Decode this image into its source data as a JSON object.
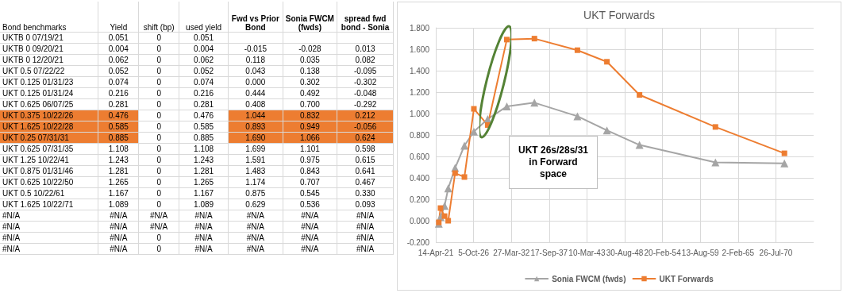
{
  "chart_data": [
    {
      "type": "other",
      "categories": [
        "Bond benchmarks",
        "Yield",
        "shift (bp)",
        "used yield",
        "Fwd vs Prior Bond",
        "Sonia FWCM (fwds)",
        "spread fwd bond - Sonia"
      ],
      "y_categories": [
        "UKTB 0 07/19/21",
        "UKTB 0 09/20/21",
        "UKTB 0 12/20/21",
        "UKT 0.5 07/22/22",
        "UKT 0.125 01/31/23",
        "UKT 0.125 01/31/24",
        "UKT 0.625 06/07/25",
        "UKT 0.375 10/22/26",
        "UKT 1.625 10/22/28",
        "UKT 0.25 07/31/31",
        "UKT 0.625 07/31/35",
        "UKT 1.25 10/22/41",
        "UKT 0.875 01/31/46",
        "UKT 0.625 10/22/50",
        "UKT 0.5 10/22/61",
        "UKT 1.625 10/22/71",
        "#N/A",
        "#N/A",
        "#N/A",
        "#N/A"
      ],
      "cell_labels": [
        [
          "0.051",
          "0",
          "0.051",
          null,
          null,
          null
        ],
        [
          "0.004",
          "0",
          "0.004",
          "-0.015",
          "-0.028",
          "0.013"
        ],
        [
          "0.062",
          "0",
          "0.062",
          "0.118",
          "0.035",
          "0.082"
        ],
        [
          "0.052",
          "0",
          "0.052",
          "0.043",
          "0.138",
          "-0.095"
        ],
        [
          "0.074",
          "0",
          "0.074",
          "0.000",
          "0.302",
          "-0.302"
        ],
        [
          "0.216",
          "0",
          "0.216",
          "0.444",
          "0.492",
          "-0.048"
        ],
        [
          "0.281",
          "0",
          "0.281",
          "0.408",
          "0.700",
          "-0.292"
        ],
        [
          "0.476",
          "0",
          "0.476",
          "1.044",
          "0.832",
          "0.212"
        ],
        [
          "0.585",
          "0",
          "0.585",
          "0.893",
          "0.949",
          "-0.056"
        ],
        [
          "0.885",
          "0",
          "0.885",
          "1.690",
          "1.066",
          "0.624"
        ],
        [
          "1.108",
          "0",
          "1.108",
          "1.699",
          "1.101",
          "0.598"
        ],
        [
          "1.243",
          "0",
          "1.243",
          "1.591",
          "0.975",
          "0.615"
        ],
        [
          "1.281",
          "0",
          "1.281",
          "1.483",
          "0.843",
          "0.641"
        ],
        [
          "1.265",
          "0",
          "1.265",
          "1.174",
          "0.707",
          "0.467"
        ],
        [
          "1.167",
          "0",
          "1.167",
          "0.875",
          "0.545",
          "0.330"
        ],
        [
          "1.089",
          "0",
          "1.089",
          "0.629",
          "0.536",
          "0.093"
        ],
        [
          "#N/A",
          "#N/A",
          "#N/A",
          "#N/A",
          "#N/A",
          "#N/A"
        ],
        [
          "#N/A",
          "#N/A",
          "#N/A",
          "#N/A",
          "#N/A",
          "#N/A"
        ],
        [
          "#N/A",
          "0",
          "#N/A",
          "#N/A",
          "#N/A",
          "#N/A"
        ],
        [
          "#N/A",
          "0",
          "#N/A",
          "#N/A",
          "#N/A",
          "#N/A"
        ]
      ],
      "colors": [
        null,
        null,
        null,
        null,
        null,
        null,
        null,
        "#ed7d31",
        "#ed7d31",
        "#ed7d31",
        null,
        null,
        null,
        null,
        null,
        null,
        null,
        null,
        null,
        null
      ]
    },
    {
      "type": "line",
      "title": "UKT Forwards",
      "x": [
        "2021-09-20",
        "2021-12-20",
        "2022-07-22",
        "2023-01-31",
        "2024-01-31",
        "2025-06-07",
        "2026-10-22",
        "2028-10-22",
        "2031-07-31",
        "2035-07-31",
        "2041-10-22",
        "2046-01-31",
        "2050-10-22",
        "2061-10-22",
        "2071-10-22"
      ],
      "series": [
        {
          "name": "Sonia FWCM (fwds)",
          "color": "#a5a5a5",
          "marker": "triangle",
          "values": [
            -0.028,
            0.035,
            0.138,
            0.302,
            0.492,
            0.7,
            0.832,
            0.949,
            1.066,
            1.101,
            0.975,
            0.843,
            0.707,
            0.545,
            0.536
          ]
        },
        {
          "name": "UKT Forwards",
          "color": "#ed7d31",
          "marker": "square",
          "values": [
            -0.015,
            0.118,
            0.043,
            0.0,
            0.444,
            0.408,
            1.044,
            0.893,
            1.69,
            1.699,
            1.591,
            1.483,
            1.174,
            0.875,
            0.629
          ]
        }
      ],
      "xlim": [
        "2021-04-14",
        "2076-01-15"
      ],
      "xticks": [
        {
          "value": "2021-04-14",
          "label": "14-Apr-21"
        },
        {
          "value": "2026-10-05",
          "label": "5-Oct-26"
        },
        {
          "value": "2032-03-27",
          "label": "27-Mar-32"
        },
        {
          "value": "2037-09-17",
          "label": "17-Sep-37"
        },
        {
          "value": "2043-03-10",
          "label": "10-Mar-43"
        },
        {
          "value": "2048-08-30",
          "label": "30-Aug-48"
        },
        {
          "value": "2054-02-20",
          "label": "20-Feb-54"
        },
        {
          "value": "2059-08-13",
          "label": "13-Aug-59"
        },
        {
          "value": "2065-02-02",
          "label": "2-Feb-65"
        },
        {
          "value": "2070-07-26",
          "label": "26-Jul-70"
        }
      ],
      "ylim": [
        -0.2,
        1.8
      ],
      "yticks": [
        {
          "value": -0.2,
          "label": "-0.200"
        },
        {
          "value": 0,
          "label": "0.000"
        },
        {
          "value": 0.2,
          "label": "0.200"
        },
        {
          "value": 0.4,
          "label": "0.400"
        },
        {
          "value": 0.6,
          "label": "0.600"
        },
        {
          "value": 0.8,
          "label": "0.800"
        },
        {
          "value": 1.0,
          "label": "1.000"
        },
        {
          "value": 1.2,
          "label": "1.200"
        },
        {
          "value": 1.4,
          "label": "1.400"
        },
        {
          "value": 1.6,
          "label": "1.600"
        },
        {
          "value": 1.8,
          "label": "1.800"
        }
      ],
      "annotations": [
        "UKT 26s/28s/31 in Forward space"
      ],
      "grid": true,
      "legend": "bottom"
    }
  ]
}
